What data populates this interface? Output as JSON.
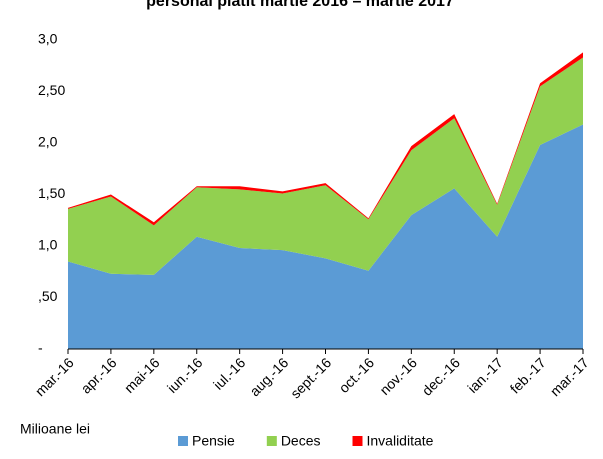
{
  "chart_data": {
    "type": "stacked_area",
    "title": "personal platit martie 2016 – martie 2017",
    "y_label": "Milioane lei",
    "categories": [
      "mar.-16",
      "apr.-16",
      "mai-16",
      "iun.-16",
      "iul.-16",
      "aug.-16",
      "sept.-16",
      "oct.-16",
      "nov.-16",
      "dec.-16",
      "ian.-17",
      "feb.-17",
      "mar.-17"
    ],
    "series": [
      {
        "name": "Pensie",
        "color": "#5b9bd5",
        "values": [
          0.85,
          0.73,
          0.72,
          1.09,
          0.98,
          0.96,
          0.88,
          0.76,
          1.3,
          1.56,
          1.09,
          1.98,
          2.18
        ]
      },
      {
        "name": "Deces",
        "color": "#92d050",
        "values": [
          0.51,
          0.75,
          0.48,
          0.48,
          0.57,
          0.55,
          0.71,
          0.5,
          0.63,
          0.68,
          0.31,
          0.57,
          0.65
        ]
      },
      {
        "name": "Invaliditate",
        "color": "#ff0000",
        "values": [
          0.01,
          0.02,
          0.03,
          0.01,
          0.03,
          0.02,
          0.02,
          0.01,
          0.04,
          0.04,
          0.01,
          0.03,
          0.05
        ]
      }
    ],
    "ylim": [
      0,
      3
    ],
    "yticks": [
      {
        "value": 0,
        "label": "-"
      },
      {
        "value": 0.5,
        "label": ",50"
      },
      {
        "value": 1,
        "label": "1,0"
      },
      {
        "value": 1.5,
        "label": "1,50"
      },
      {
        "value": 2,
        "label": "2,0"
      },
      {
        "value": 2.5,
        "label": "2,50"
      },
      {
        "value": 3,
        "label": "3,0"
      }
    ],
    "legend": "bottom"
  }
}
